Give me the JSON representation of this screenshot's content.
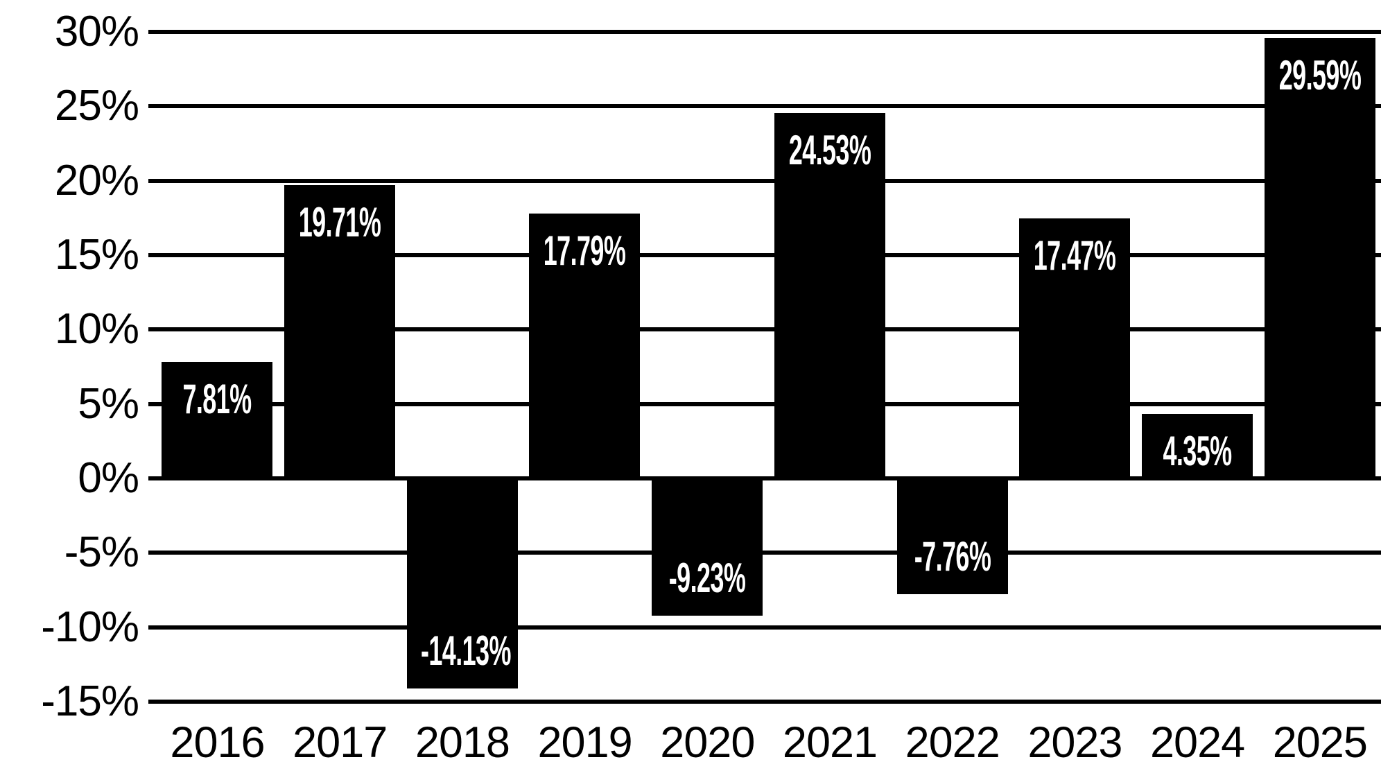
{
  "chart_data": {
    "type": "bar",
    "title": "",
    "xlabel": "",
    "ylabel": "",
    "categories": [
      "2016",
      "2017",
      "2018",
      "2019",
      "2020",
      "2021",
      "2022",
      "2023",
      "2024",
      "2025"
    ],
    "values": [
      7.81,
      19.71,
      -14.13,
      17.79,
      -9.23,
      24.53,
      -7.76,
      17.47,
      4.35,
      29.59
    ],
    "value_labels": [
      "7.81%",
      "19.71%",
      "-14.13%",
      "17.79%",
      "-9.23%",
      "24.53%",
      "-7.76%",
      "17.47%",
      "4.35%",
      "29.59%"
    ],
    "y_tick_values": [
      30,
      25,
      20,
      15,
      10,
      5,
      0,
      -5,
      -10,
      -15
    ],
    "y_tick_labels": [
      "30%",
      "25%",
      "20%",
      "15%",
      "10%",
      "5%",
      "0%",
      "-5%",
      "-10%",
      "-15%"
    ],
    "ylim": [
      -15,
      30
    ],
    "grid": true,
    "legend": false,
    "colors": {
      "bar": "#000000",
      "bar_label_text": "#ffffff",
      "axis_text": "#000000",
      "gridline": "#000000",
      "background": "#ffffff"
    }
  }
}
